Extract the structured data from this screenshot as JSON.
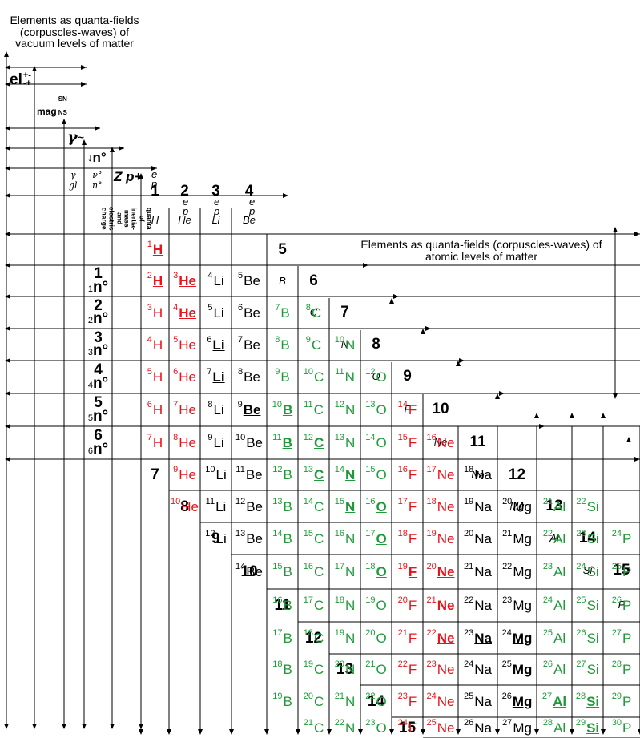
{
  "titles": {
    "vacuum": "Elements as quanta-fields (corpuscles-waves) of vacuum levels of matter",
    "atomic": "Elements as quanta-fields (corpuscles-waves) of atomic levels of matter"
  },
  "vacuum_labels": {
    "el": "el",
    "el_sup": "+-",
    "el_sub": "-+",
    "mag": "mag",
    "mag_sn": "SN",
    "mag_ns": "NS",
    "gamma": "γ",
    "gamma_sup": "~",
    "n0": "n°",
    "gamma_gl_top": "γ",
    "gamma_gl_bottom": "gl",
    "nu_top": "ν°",
    "nu_bottom": "n°",
    "zp": "Z p+",
    "quanta_text": "quanta of inertia-mass and electric charge"
  },
  "z_headers": [
    {
      "z": "1",
      "name": "H"
    },
    {
      "z": "2",
      "name": "He"
    },
    {
      "z": "3",
      "name": "Li"
    },
    {
      "z": "4",
      "name": "Be"
    },
    {
      "z": "5",
      "name": "B"
    },
    {
      "z": "6",
      "name": "C"
    },
    {
      "z": "7",
      "name": "N"
    },
    {
      "z": "8",
      "name": "O"
    },
    {
      "z": "9",
      "name": "F"
    },
    {
      "z": "10",
      "name": "Ne"
    },
    {
      "z": "11",
      "name": "Na"
    },
    {
      "z": "12",
      "name": "Mg"
    },
    {
      "z": "13",
      "name": "Al"
    },
    {
      "z": "14",
      "name": "Si"
    },
    {
      "z": "15",
      "name": "P"
    }
  ],
  "ep_label": {
    "e": "e",
    "e_sup": "-",
    "p": "p",
    "p_sup": "+"
  },
  "n_rows": [
    {
      "n": "1",
      "sub": "1",
      "label": "n°"
    },
    {
      "n": "2",
      "sub": "2",
      "label": "n°"
    },
    {
      "n": "3",
      "sub": "3",
      "label": "n°"
    },
    {
      "n": "4",
      "sub": "4",
      "label": "n°"
    },
    {
      "n": "5",
      "sub": "5",
      "label": "n°"
    },
    {
      "n": "6",
      "sub": "6",
      "label": "n°"
    }
  ],
  "left_nums": [
    "7",
    "8",
    "9",
    "10",
    "11",
    "12",
    "13",
    "14",
    "15"
  ],
  "isotopes": [
    {
      "a": "1",
      "s": "H",
      "c": "red",
      "b": true,
      "r": 0,
      "col": 0
    },
    {
      "a": "2",
      "s": "H",
      "c": "red",
      "b": true,
      "r": 1,
      "col": 0
    },
    {
      "a": "3",
      "s": "He",
      "c": "red",
      "b": true,
      "r": 1,
      "col": 1
    },
    {
      "a": "4",
      "s": "Li",
      "c": "black",
      "b": false,
      "r": 1,
      "col": 2
    },
    {
      "a": "5",
      "s": "Be",
      "c": "black",
      "b": false,
      "r": 1,
      "col": 3
    },
    {
      "a": "3",
      "s": "H",
      "c": "red",
      "b": false,
      "r": 2,
      "col": 0
    },
    {
      "a": "4",
      "s": "He",
      "c": "red",
      "b": true,
      "r": 2,
      "col": 1
    },
    {
      "a": "5",
      "s": "Li",
      "c": "black",
      "b": false,
      "r": 2,
      "col": 2
    },
    {
      "a": "6",
      "s": "Be",
      "c": "black",
      "b": false,
      "r": 2,
      "col": 3
    },
    {
      "a": "7",
      "s": "B",
      "c": "green",
      "b": false,
      "r": 2,
      "col": 4
    },
    {
      "a": "8",
      "s": "C",
      "c": "green",
      "b": false,
      "r": 2,
      "col": 5
    },
    {
      "a": "4",
      "s": "H",
      "c": "red",
      "b": false,
      "r": 3,
      "col": 0
    },
    {
      "a": "5",
      "s": "He",
      "c": "red",
      "b": false,
      "r": 3,
      "col": 1
    },
    {
      "a": "6",
      "s": "Li",
      "c": "black",
      "b": true,
      "r": 3,
      "col": 2
    },
    {
      "a": "7",
      "s": "Be",
      "c": "black",
      "b": false,
      "r": 3,
      "col": 3
    },
    {
      "a": "8",
      "s": "B",
      "c": "green",
      "b": false,
      "r": 3,
      "col": 4
    },
    {
      "a": "9",
      "s": "C",
      "c": "green",
      "b": false,
      "r": 3,
      "col": 5
    },
    {
      "a": "10",
      "s": "N",
      "c": "green",
      "b": false,
      "r": 3,
      "col": 6
    },
    {
      "a": "5",
      "s": "H",
      "c": "red",
      "b": false,
      "r": 4,
      "col": 0
    },
    {
      "a": "6",
      "s": "He",
      "c": "red",
      "b": false,
      "r": 4,
      "col": 1
    },
    {
      "a": "7",
      "s": "Li",
      "c": "black",
      "b": true,
      "r": 4,
      "col": 2
    },
    {
      "a": "8",
      "s": "Be",
      "c": "black",
      "b": false,
      "r": 4,
      "col": 3
    },
    {
      "a": "9",
      "s": "B",
      "c": "green",
      "b": false,
      "r": 4,
      "col": 4
    },
    {
      "a": "10",
      "s": "C",
      "c": "green",
      "b": false,
      "r": 4,
      "col": 5
    },
    {
      "a": "11",
      "s": "N",
      "c": "green",
      "b": false,
      "r": 4,
      "col": 6
    },
    {
      "a": "12",
      "s": "O",
      "c": "green",
      "b": false,
      "r": 4,
      "col": 7
    },
    {
      "a": "6",
      "s": "H",
      "c": "red",
      "b": false,
      "r": 5,
      "col": 0
    },
    {
      "a": "7",
      "s": "He",
      "c": "red",
      "b": false,
      "r": 5,
      "col": 1
    },
    {
      "a": "8",
      "s": "Li",
      "c": "black",
      "b": false,
      "r": 5,
      "col": 2
    },
    {
      "a": "9",
      "s": "Be",
      "c": "black",
      "b": true,
      "r": 5,
      "col": 3
    },
    {
      "a": "10",
      "s": "B",
      "c": "green",
      "b": true,
      "r": 5,
      "col": 4
    },
    {
      "a": "11",
      "s": "C",
      "c": "green",
      "b": false,
      "r": 5,
      "col": 5
    },
    {
      "a": "12",
      "s": "N",
      "c": "green",
      "b": false,
      "r": 5,
      "col": 6
    },
    {
      "a": "13",
      "s": "O",
      "c": "green",
      "b": false,
      "r": 5,
      "col": 7
    },
    {
      "a": "14",
      "s": "F",
      "c": "red",
      "b": false,
      "r": 5,
      "col": 8
    },
    {
      "a": "7",
      "s": "H",
      "c": "red",
      "b": false,
      "r": 6,
      "col": 0
    },
    {
      "a": "8",
      "s": "He",
      "c": "red",
      "b": false,
      "r": 6,
      "col": 1
    },
    {
      "a": "9",
      "s": "Li",
      "c": "black",
      "b": false,
      "r": 6,
      "col": 2
    },
    {
      "a": "10",
      "s": "Be",
      "c": "black",
      "b": false,
      "r": 6,
      "col": 3
    },
    {
      "a": "11",
      "s": "B",
      "c": "green",
      "b": true,
      "r": 6,
      "col": 4
    },
    {
      "a": "12",
      "s": "C",
      "c": "green",
      "b": true,
      "r": 6,
      "col": 5
    },
    {
      "a": "13",
      "s": "N",
      "c": "green",
      "b": false,
      "r": 6,
      "col": 6
    },
    {
      "a": "14",
      "s": "O",
      "c": "green",
      "b": false,
      "r": 6,
      "col": 7
    },
    {
      "a": "15",
      "s": "F",
      "c": "red",
      "b": false,
      "r": 6,
      "col": 8
    },
    {
      "a": "16",
      "s": "Ne",
      "c": "red",
      "b": false,
      "r": 6,
      "col": 9
    },
    {
      "a": "9",
      "s": "He",
      "c": "red",
      "b": false,
      "r": 7,
      "col": 1
    },
    {
      "a": "10",
      "s": "Li",
      "c": "black",
      "b": false,
      "r": 7,
      "col": 2
    },
    {
      "a": "11",
      "s": "Be",
      "c": "black",
      "b": false,
      "r": 7,
      "col": 3
    },
    {
      "a": "12",
      "s": "B",
      "c": "green",
      "b": false,
      "r": 7,
      "col": 4
    },
    {
      "a": "13",
      "s": "C",
      "c": "green",
      "b": true,
      "r": 7,
      "col": 5
    },
    {
      "a": "14",
      "s": "N",
      "c": "green",
      "b": true,
      "r": 7,
      "col": 6
    },
    {
      "a": "15",
      "s": "O",
      "c": "green",
      "b": false,
      "r": 7,
      "col": 7
    },
    {
      "a": "16",
      "s": "F",
      "c": "red",
      "b": false,
      "r": 7,
      "col": 8
    },
    {
      "a": "17",
      "s": "Ne",
      "c": "red",
      "b": false,
      "r": 7,
      "col": 9
    },
    {
      "a": "18",
      "s": "Na",
      "c": "black",
      "b": false,
      "r": 7,
      "col": 10
    },
    {
      "a": "10",
      "s": "He",
      "c": "red",
      "b": false,
      "r": 8,
      "col": 1
    },
    {
      "a": "11",
      "s": "Li",
      "c": "black",
      "b": false,
      "r": 8,
      "col": 2
    },
    {
      "a": "12",
      "s": "Be",
      "c": "black",
      "b": false,
      "r": 8,
      "col": 3
    },
    {
      "a": "13",
      "s": "B",
      "c": "green",
      "b": false,
      "r": 8,
      "col": 4
    },
    {
      "a": "14",
      "s": "C",
      "c": "green",
      "b": false,
      "r": 8,
      "col": 5
    },
    {
      "a": "15",
      "s": "N",
      "c": "green",
      "b": true,
      "r": 8,
      "col": 6
    },
    {
      "a": "16",
      "s": "O",
      "c": "green",
      "b": true,
      "r": 8,
      "col": 7
    },
    {
      "a": "17",
      "s": "F",
      "c": "red",
      "b": false,
      "r": 8,
      "col": 8
    },
    {
      "a": "18",
      "s": "Ne",
      "c": "red",
      "b": false,
      "r": 8,
      "col": 9
    },
    {
      "a": "19",
      "s": "Na",
      "c": "black",
      "b": false,
      "r": 8,
      "col": 10
    },
    {
      "a": "20",
      "s": "Mg",
      "c": "black",
      "b": false,
      "r": 8,
      "col": 11
    },
    {
      "a": "21",
      "s": "Al",
      "c": "green",
      "b": false,
      "r": 8,
      "col": 12
    },
    {
      "a": "22",
      "s": "Si",
      "c": "green",
      "b": false,
      "r": 8,
      "col": 13
    },
    {
      "a": "12",
      "s": "Li",
      "c": "black",
      "b": false,
      "r": 9,
      "col": 2
    },
    {
      "a": "13",
      "s": "Be",
      "c": "black",
      "b": false,
      "r": 9,
      "col": 3
    },
    {
      "a": "14",
      "s": "B",
      "c": "green",
      "b": false,
      "r": 9,
      "col": 4
    },
    {
      "a": "15",
      "s": "C",
      "c": "green",
      "b": false,
      "r": 9,
      "col": 5
    },
    {
      "a": "16",
      "s": "N",
      "c": "green",
      "b": false,
      "r": 9,
      "col": 6
    },
    {
      "a": "17",
      "s": "O",
      "c": "green",
      "b": true,
      "r": 9,
      "col": 7
    },
    {
      "a": "18",
      "s": "F",
      "c": "red",
      "b": false,
      "r": 9,
      "col": 8
    },
    {
      "a": "19",
      "s": "Ne",
      "c": "red",
      "b": false,
      "r": 9,
      "col": 9
    },
    {
      "a": "20",
      "s": "Na",
      "c": "black",
      "b": false,
      "r": 9,
      "col": 10
    },
    {
      "a": "21",
      "s": "Mg",
      "c": "black",
      "b": false,
      "r": 9,
      "col": 11
    },
    {
      "a": "22",
      "s": "Al",
      "c": "green",
      "b": false,
      "r": 9,
      "col": 12
    },
    {
      "a": "23",
      "s": "Si",
      "c": "green",
      "b": false,
      "r": 9,
      "col": 13
    },
    {
      "a": "24",
      "s": "P",
      "c": "green",
      "b": false,
      "r": 9,
      "col": 14
    },
    {
      "a": "14",
      "s": "Be",
      "c": "black",
      "b": false,
      "r": 10,
      "col": 3
    },
    {
      "a": "15",
      "s": "B",
      "c": "green",
      "b": false,
      "r": 10,
      "col": 4
    },
    {
      "a": "16",
      "s": "C",
      "c": "green",
      "b": false,
      "r": 10,
      "col": 5
    },
    {
      "a": "17",
      "s": "N",
      "c": "green",
      "b": false,
      "r": 10,
      "col": 6
    },
    {
      "a": "18",
      "s": "O",
      "c": "green",
      "b": true,
      "r": 10,
      "col": 7
    },
    {
      "a": "19",
      "s": "F",
      "c": "red",
      "b": true,
      "r": 10,
      "col": 8
    },
    {
      "a": "20",
      "s": "Ne",
      "c": "red",
      "b": true,
      "r": 10,
      "col": 9
    },
    {
      "a": "21",
      "s": "Na",
      "c": "black",
      "b": false,
      "r": 10,
      "col": 10
    },
    {
      "a": "22",
      "s": "Mg",
      "c": "black",
      "b": false,
      "r": 10,
      "col": 11
    },
    {
      "a": "23",
      "s": "Al",
      "c": "green",
      "b": false,
      "r": 10,
      "col": 12
    },
    {
      "a": "24",
      "s": "Si",
      "c": "green",
      "b": false,
      "r": 10,
      "col": 13
    },
    {
      "a": "25",
      "s": "P",
      "c": "green",
      "b": false,
      "r": 10,
      "col": 14
    },
    {
      "a": "16",
      "s": "B",
      "c": "green",
      "b": false,
      "r": 11,
      "col": 4
    },
    {
      "a": "17",
      "s": "C",
      "c": "green",
      "b": false,
      "r": 11,
      "col": 5
    },
    {
      "a": "18",
      "s": "N",
      "c": "green",
      "b": false,
      "r": 11,
      "col": 6
    },
    {
      "a": "19",
      "s": "O",
      "c": "green",
      "b": false,
      "r": 11,
      "col": 7
    },
    {
      "a": "20",
      "s": "F",
      "c": "red",
      "b": false,
      "r": 11,
      "col": 8
    },
    {
      "a": "21",
      "s": "Ne",
      "c": "red",
      "b": true,
      "r": 11,
      "col": 9
    },
    {
      "a": "22",
      "s": "Na",
      "c": "black",
      "b": false,
      "r": 11,
      "col": 10
    },
    {
      "a": "23",
      "s": "Mg",
      "c": "black",
      "b": false,
      "r": 11,
      "col": 11
    },
    {
      "a": "24",
      "s": "Al",
      "c": "green",
      "b": false,
      "r": 11,
      "col": 12
    },
    {
      "a": "25",
      "s": "Si",
      "c": "green",
      "b": false,
      "r": 11,
      "col": 13
    },
    {
      "a": "26",
      "s": "P",
      "c": "green",
      "b": false,
      "r": 11,
      "col": 14
    },
    {
      "a": "17",
      "s": "B",
      "c": "green",
      "b": false,
      "r": 12,
      "col": 4
    },
    {
      "a": "18",
      "s": "C",
      "c": "green",
      "b": false,
      "r": 12,
      "col": 5
    },
    {
      "a": "19",
      "s": "N",
      "c": "green",
      "b": false,
      "r": 12,
      "col": 6
    },
    {
      "a": "20",
      "s": "O",
      "c": "green",
      "b": false,
      "r": 12,
      "col": 7
    },
    {
      "a": "21",
      "s": "F",
      "c": "red",
      "b": false,
      "r": 12,
      "col": 8
    },
    {
      "a": "22",
      "s": "Ne",
      "c": "red",
      "b": true,
      "r": 12,
      "col": 9
    },
    {
      "a": "23",
      "s": "Na",
      "c": "black",
      "b": true,
      "r": 12,
      "col": 10
    },
    {
      "a": "24",
      "s": "Mg",
      "c": "black",
      "b": true,
      "r": 12,
      "col": 11
    },
    {
      "a": "25",
      "s": "Al",
      "c": "green",
      "b": false,
      "r": 12,
      "col": 12
    },
    {
      "a": "26",
      "s": "Si",
      "c": "green",
      "b": false,
      "r": 12,
      "col": 13
    },
    {
      "a": "27",
      "s": "P",
      "c": "green",
      "b": false,
      "r": 12,
      "col": 14
    },
    {
      "a": "18",
      "s": "B",
      "c": "green",
      "b": false,
      "r": 13,
      "col": 4
    },
    {
      "a": "19",
      "s": "C",
      "c": "green",
      "b": false,
      "r": 13,
      "col": 5
    },
    {
      "a": "20",
      "s": "N",
      "c": "green",
      "b": false,
      "r": 13,
      "col": 6
    },
    {
      "a": "21",
      "s": "O",
      "c": "green",
      "b": false,
      "r": 13,
      "col": 7
    },
    {
      "a": "22",
      "s": "F",
      "c": "red",
      "b": false,
      "r": 13,
      "col": 8
    },
    {
      "a": "23",
      "s": "Ne",
      "c": "red",
      "b": false,
      "r": 13,
      "col": 9
    },
    {
      "a": "24",
      "s": "Na",
      "c": "black",
      "b": false,
      "r": 13,
      "col": 10
    },
    {
      "a": "25",
      "s": "Mg",
      "c": "black",
      "b": true,
      "r": 13,
      "col": 11
    },
    {
      "a": "26",
      "s": "Al",
      "c": "green",
      "b": false,
      "r": 13,
      "col": 12
    },
    {
      "a": "27",
      "s": "Si",
      "c": "green",
      "b": false,
      "r": 13,
      "col": 13
    },
    {
      "a": "28",
      "s": "P",
      "c": "green",
      "b": false,
      "r": 13,
      "col": 14
    },
    {
      "a": "19",
      "s": "B",
      "c": "green",
      "b": false,
      "r": 14,
      "col": 4
    },
    {
      "a": "20",
      "s": "C",
      "c": "green",
      "b": false,
      "r": 14,
      "col": 5
    },
    {
      "a": "21",
      "s": "N",
      "c": "green",
      "b": false,
      "r": 14,
      "col": 6
    },
    {
      "a": "22",
      "s": "O",
      "c": "green",
      "b": false,
      "r": 14,
      "col": 7
    },
    {
      "a": "23",
      "s": "F",
      "c": "red",
      "b": false,
      "r": 14,
      "col": 8
    },
    {
      "a": "24",
      "s": "Ne",
      "c": "red",
      "b": false,
      "r": 14,
      "col": 9
    },
    {
      "a": "25",
      "s": "Na",
      "c": "black",
      "b": false,
      "r": 14,
      "col": 10
    },
    {
      "a": "26",
      "s": "Mg",
      "c": "black",
      "b": true,
      "r": 14,
      "col": 11
    },
    {
      "a": "27",
      "s": "Al",
      "c": "green",
      "b": true,
      "r": 14,
      "col": 12
    },
    {
      "a": "28",
      "s": "Si",
      "c": "green",
      "b": true,
      "r": 14,
      "col": 13
    },
    {
      "a": "29",
      "s": "P",
      "c": "green",
      "b": false,
      "r": 14,
      "col": 14
    },
    {
      "a": "21",
      "s": "C",
      "c": "green",
      "b": false,
      "r": 15,
      "col": 5
    },
    {
      "a": "22",
      "s": "N",
      "c": "green",
      "b": false,
      "r": 15,
      "col": 6
    },
    {
      "a": "23",
      "s": "O",
      "c": "green",
      "b": false,
      "r": 15,
      "col": 7
    },
    {
      "a": "24",
      "s": "F",
      "c": "red",
      "b": false,
      "r": 15,
      "col": 8
    },
    {
      "a": "25",
      "s": "Ne",
      "c": "red",
      "b": false,
      "r": 15,
      "col": 9
    },
    {
      "a": "26",
      "s": "Na",
      "c": "black",
      "b": false,
      "r": 15,
      "col": 10
    },
    {
      "a": "27",
      "s": "Mg",
      "c": "black",
      "b": false,
      "r": 15,
      "col": 11
    },
    {
      "a": "28",
      "s": "Al",
      "c": "green",
      "b": false,
      "r": 15,
      "col": 12
    },
    {
      "a": "29",
      "s": "Si",
      "c": "green",
      "b": true,
      "r": 15,
      "col": 13
    },
    {
      "a": "30",
      "s": "P",
      "c": "green",
      "b": false,
      "r": 15,
      "col": 14
    }
  ],
  "colors": {
    "red": "#e8141c",
    "green": "#1f9a3a",
    "black": "#000000"
  }
}
